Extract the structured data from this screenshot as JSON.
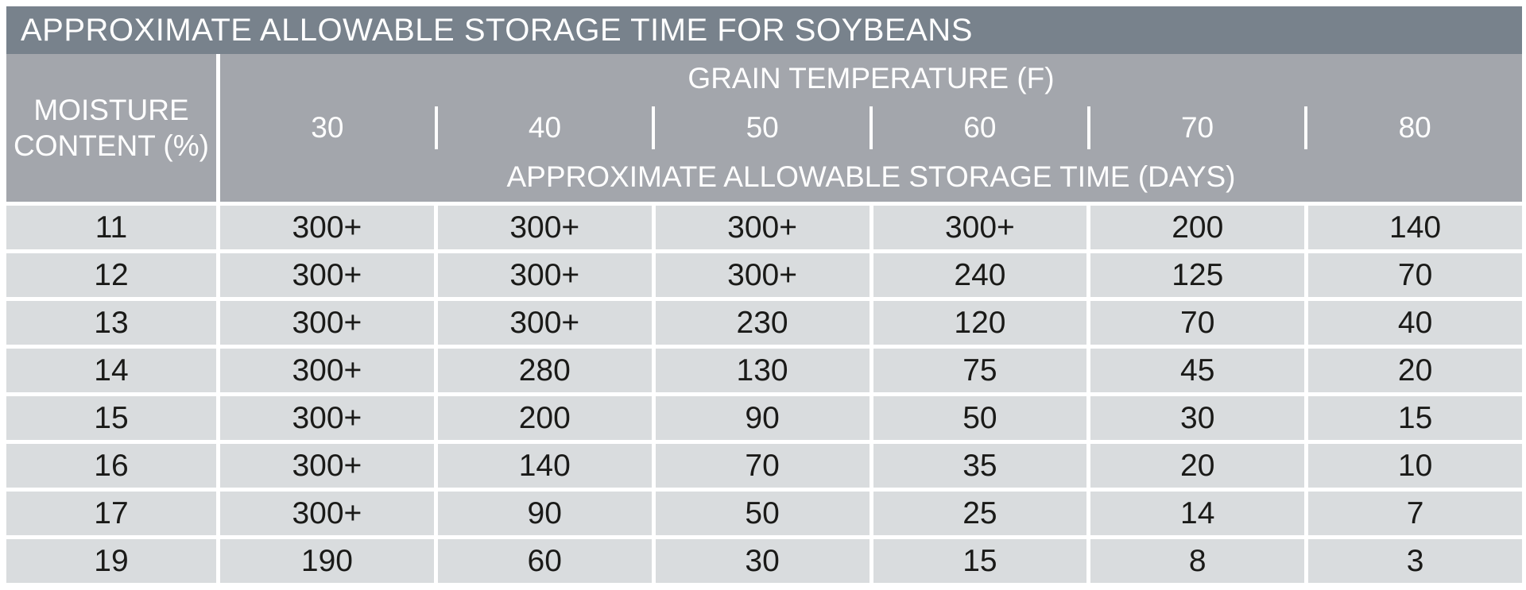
{
  "colors": {
    "title_bar": "#78828C",
    "header_bg": "#A3A6AC",
    "row_bg": "#D9DCDE",
    "header_text": "#FFFFFF",
    "data_text": "#1A1A18"
  },
  "chart_data": {
    "type": "table",
    "title": "APPROXIMATE ALLOWABLE STORAGE TIME FOR SOYBEANS",
    "row_header": {
      "label": "MOISTURE CONTENT (%)",
      "line1": "MOISTURE",
      "line2": "CONTENT (%)"
    },
    "column_group_header": "GRAIN TEMPERATURE (F)",
    "column_headers": [
      "30",
      "40",
      "50",
      "60",
      "70",
      "80"
    ],
    "sub_header": "APPROXIMATE ALLOWABLE STORAGE TIME (DAYS)",
    "rows": [
      {
        "moisture": "11",
        "values": [
          "300+",
          "300+",
          "300+",
          "300+",
          "200",
          "140"
        ]
      },
      {
        "moisture": "12",
        "values": [
          "300+",
          "300+",
          "300+",
          "240",
          "125",
          "70"
        ]
      },
      {
        "moisture": "13",
        "values": [
          "300+",
          "300+",
          "230",
          "120",
          "70",
          "40"
        ]
      },
      {
        "moisture": "14",
        "values": [
          "300+",
          "280",
          "130",
          "75",
          "45",
          "20"
        ]
      },
      {
        "moisture": "15",
        "values": [
          "300+",
          "200",
          "90",
          "50",
          "30",
          "15"
        ]
      },
      {
        "moisture": "16",
        "values": [
          "300+",
          "140",
          "70",
          "35",
          "20",
          "10"
        ]
      },
      {
        "moisture": "17",
        "values": [
          "300+",
          "90",
          "50",
          "25",
          "14",
          "7"
        ]
      },
      {
        "moisture": "19",
        "values": [
          "190",
          "60",
          "30",
          "15",
          "8",
          "3"
        ]
      }
    ]
  }
}
